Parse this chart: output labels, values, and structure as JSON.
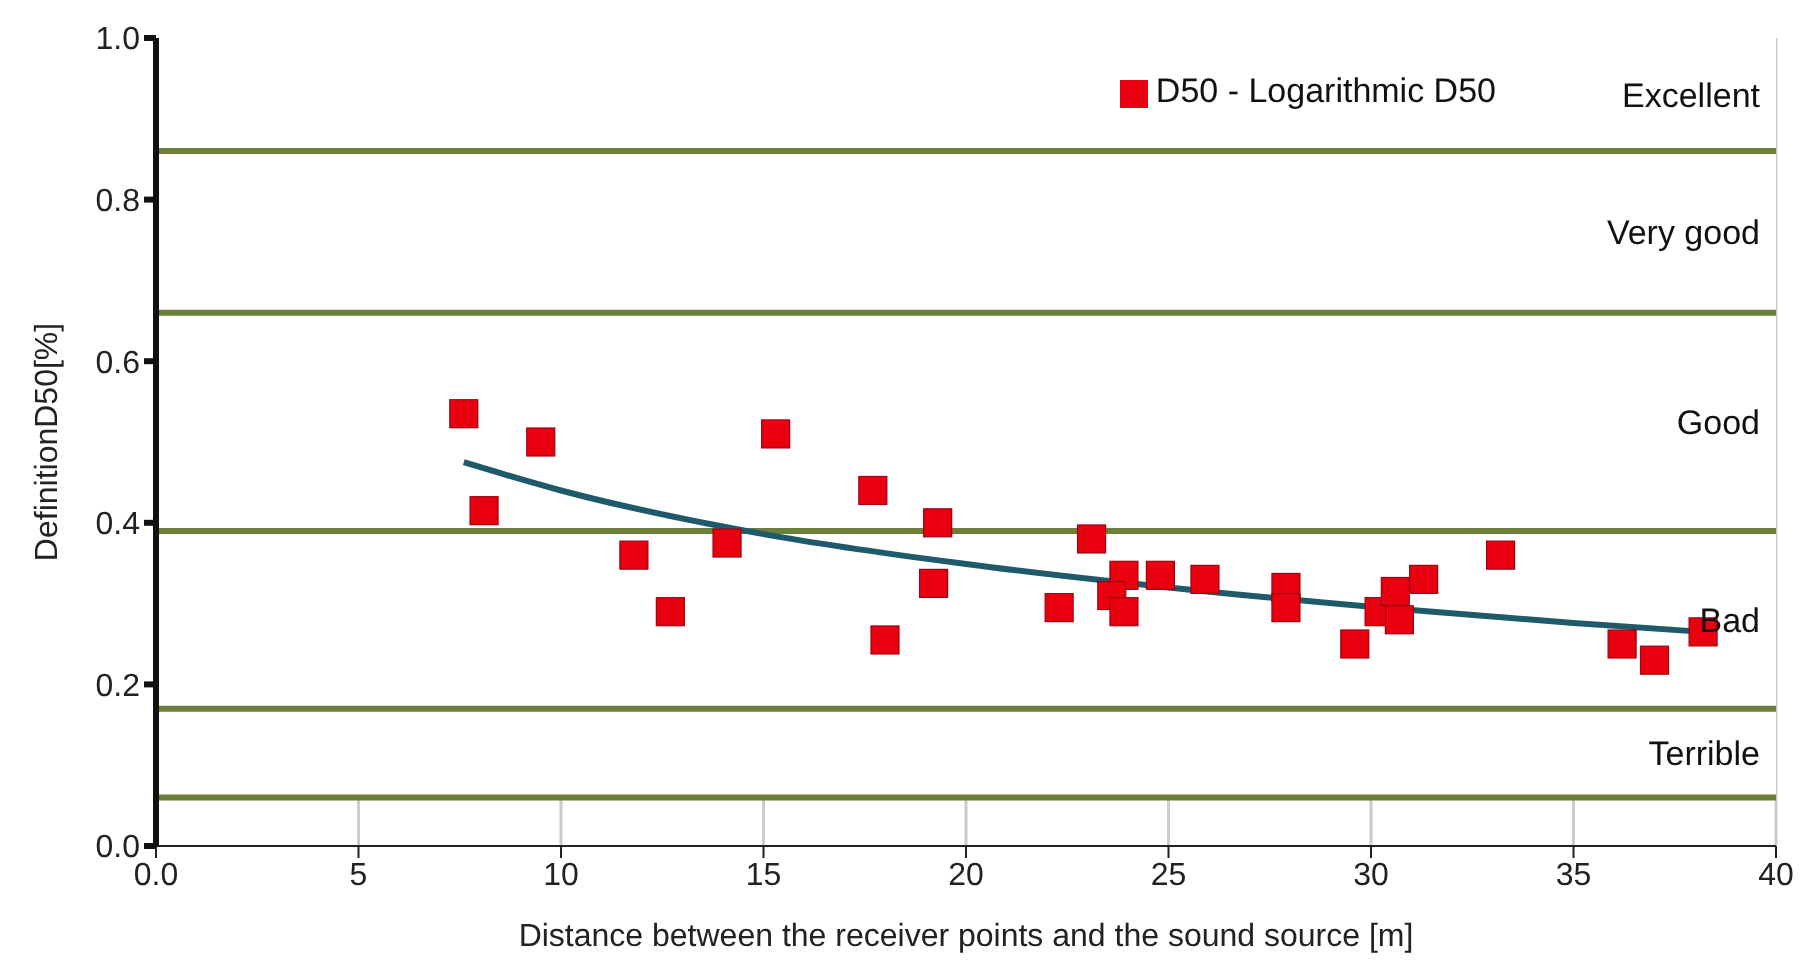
{
  "chart_data": {
    "type": "scatter",
    "xlabel": "Distance between the receiver points and the sound source [m]",
    "ylabel": "DefinitionD50[%]",
    "xlim": [
      0,
      40
    ],
    "xticks": [
      {
        "value": 0,
        "label": "0.0"
      },
      5,
      10,
      15,
      20,
      25,
      30,
      35,
      40
    ],
    "ylim": [
      0,
      1
    ],
    "yticks": [
      {
        "value": 0,
        "label": "0.0"
      },
      {
        "value": 0.2,
        "label": "0.2"
      },
      {
        "value": 0.4,
        "label": "0.4"
      },
      {
        "value": 0.6,
        "label": "0.6"
      },
      {
        "value": 0.8,
        "label": "0.8"
      },
      {
        "value": 1,
        "label": "1.0"
      }
    ],
    "grid": "x",
    "legend": "top right",
    "marker": "square",
    "series": [
      {
        "name": "D50 - Logarithmic D50",
        "type": "scatter",
        "color": "#e8000f",
        "x": [
          7.6,
          8.1,
          9.5,
          11.8,
          12.7,
          14.1,
          15.3,
          17.7,
          18,
          19.3,
          19.2,
          22.3,
          23.1,
          23.9,
          23.6,
          23.9,
          24.8,
          25.9,
          27.9,
          27.9,
          29.6,
          30.2,
          30.6,
          30.7,
          31.3,
          33.2,
          36.2,
          37,
          38.2
        ],
        "values": [
          0.535,
          0.415,
          0.5,
          0.36,
          0.29,
          0.375,
          0.51,
          0.44,
          0.255,
          0.4,
          0.325,
          0.295,
          0.38,
          0.335,
          0.31,
          0.29,
          0.335,
          0.33,
          0.32,
          0.295,
          0.25,
          0.29,
          0.315,
          0.28,
          0.33,
          0.36,
          0.25,
          0.23,
          0.265
        ]
      },
      {
        "type": "line",
        "color": "#1f5a6a",
        "marker": "none",
        "line_style": "solid",
        "x": [
          7.6,
          10,
          15,
          20,
          25,
          30,
          35,
          38.2
        ],
        "values": [
          0.475,
          0.44,
          0.386,
          0.349,
          0.32,
          0.296,
          0.276,
          0.265
        ]
      }
    ],
    "ref_lines": [
      {
        "axis": "y",
        "value": 0.86,
        "color": "#6b7f3a"
      },
      {
        "axis": "y",
        "value": 0.66,
        "color": "#6b7f3a"
      },
      {
        "axis": "y",
        "value": 0.39,
        "color": "#6b7f3a"
      },
      {
        "axis": "y",
        "value": 0.17,
        "color": "#6b7f3a"
      },
      {
        "axis": "y",
        "value": 0.06,
        "color": "#6b7f3a"
      }
    ],
    "bands": [
      {
        "axis": "y",
        "from": 0.86,
        "to": 1,
        "label": "Excellent",
        "color": "#ffffff"
      },
      {
        "axis": "y",
        "from": 0.66,
        "to": 0.86,
        "label": "Very good",
        "color": "#ffffff"
      },
      {
        "axis": "y",
        "from": 0.39,
        "to": 0.66,
        "label": "Good",
        "color": "#ffffff"
      },
      {
        "axis": "y",
        "from": 0.17,
        "to": 0.39,
        "label": "Bad",
        "color": "#ffffff"
      },
      {
        "axis": "y",
        "from": 0.06,
        "to": 0.17,
        "label": "Terrible",
        "color": "#ffffff"
      }
    ]
  }
}
